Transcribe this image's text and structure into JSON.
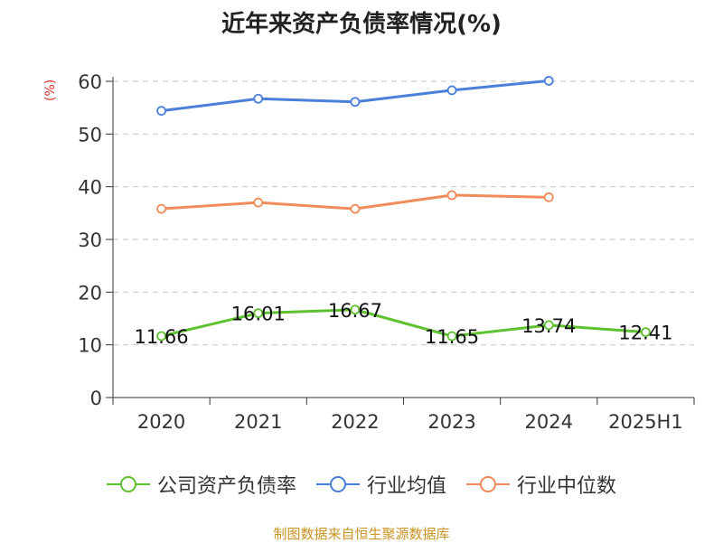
{
  "chart_data": {
    "type": "line",
    "title": "近年来资产负债率情况(%)",
    "ylabel": "(%)",
    "categories": [
      "2020",
      "2021",
      "2022",
      "2023",
      "2024",
      "2025H1"
    ],
    "ylim": [
      0,
      60
    ],
    "yticks": [
      0,
      10,
      20,
      30,
      40,
      50,
      60
    ],
    "grid": true,
    "legend_position": "bottom",
    "series": [
      {
        "name": "公司资产负债率",
        "color": "#5ec12f",
        "values": [
          11.66,
          16.01,
          16.67,
          11.65,
          13.74,
          12.41
        ],
        "labels": [
          "11.66",
          "16.01",
          "16.67",
          "11.65",
          "13.74",
          "12.41"
        ]
      },
      {
        "name": "行业均值",
        "color": "#4a7fdc",
        "values": [
          54.4,
          56.7,
          56.1,
          58.3,
          60.1,
          null
        ]
      },
      {
        "name": "行业中位数",
        "color": "#f28b5a",
        "values": [
          35.8,
          37.0,
          35.8,
          38.4,
          38.0,
          null
        ]
      }
    ]
  },
  "footer": "制图数据来自恒生聚源数据库"
}
